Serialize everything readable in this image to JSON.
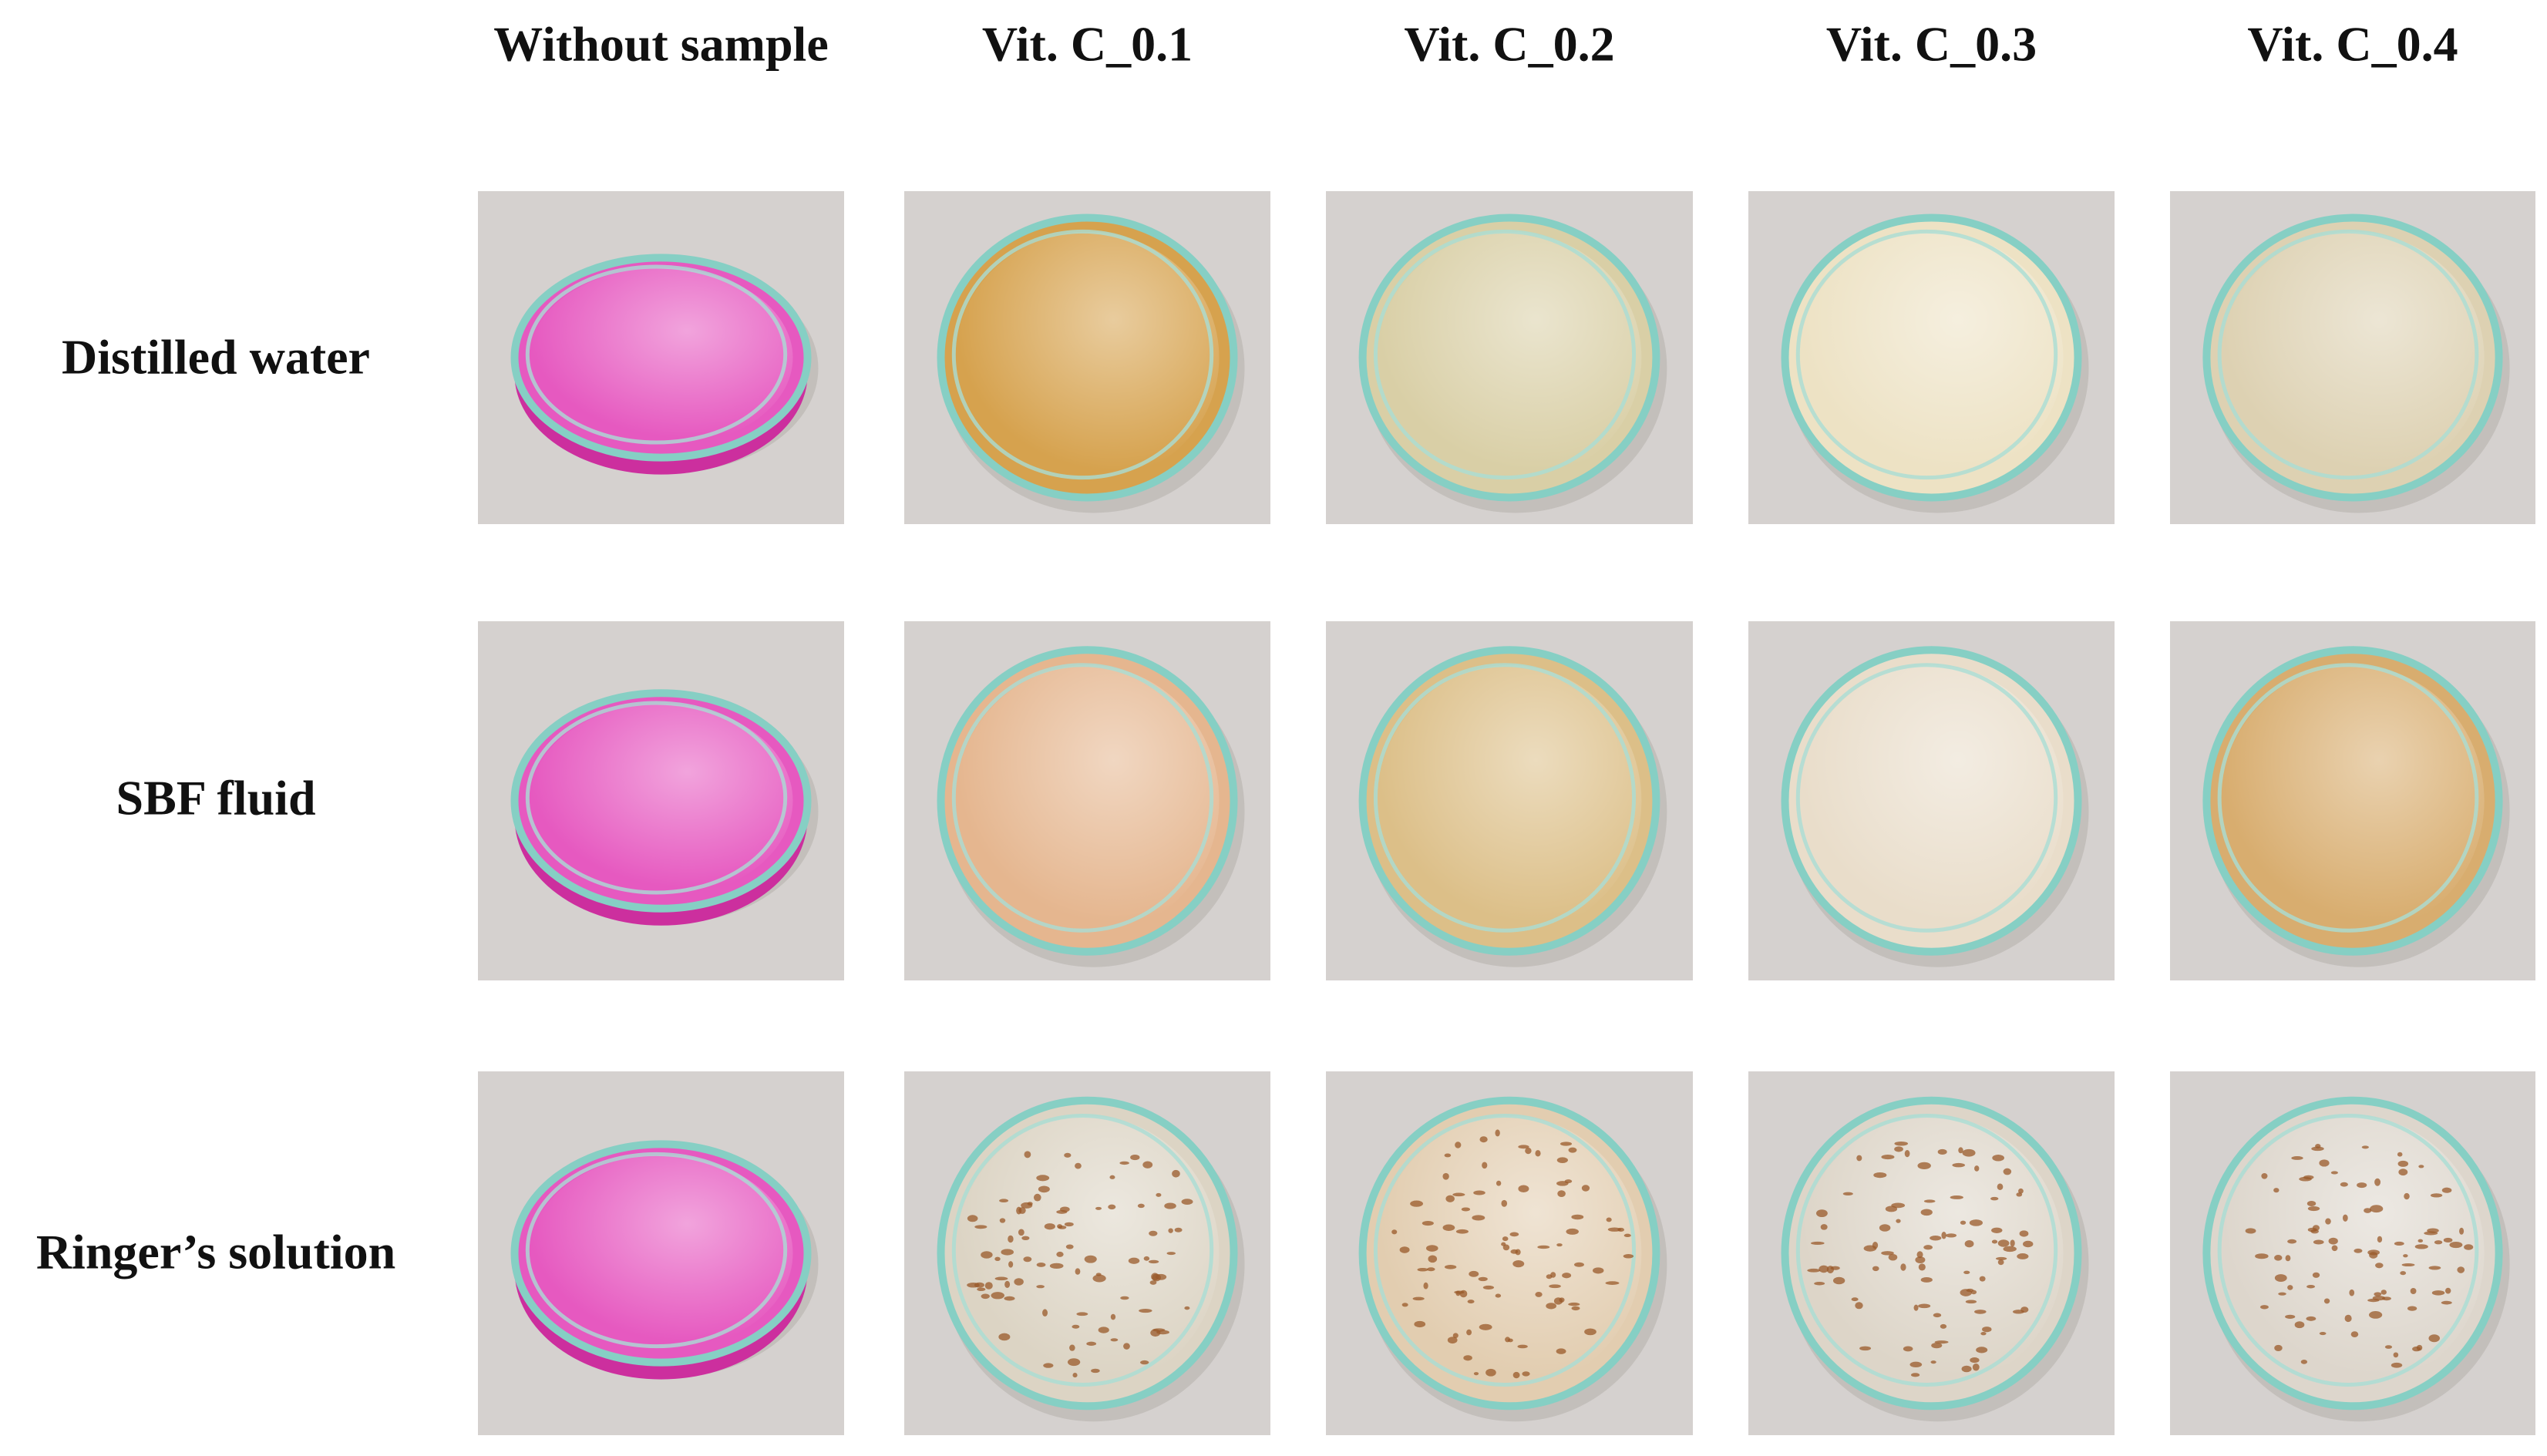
{
  "columns": [
    "Without sample",
    "Vit. C_0.1",
    "Vit. C_0.2",
    "Vit. C_0.3",
    "Vit. C_0.4"
  ],
  "rows": [
    "Distilled water",
    "SBF fluid",
    "Ringer’s solution"
  ]
}
